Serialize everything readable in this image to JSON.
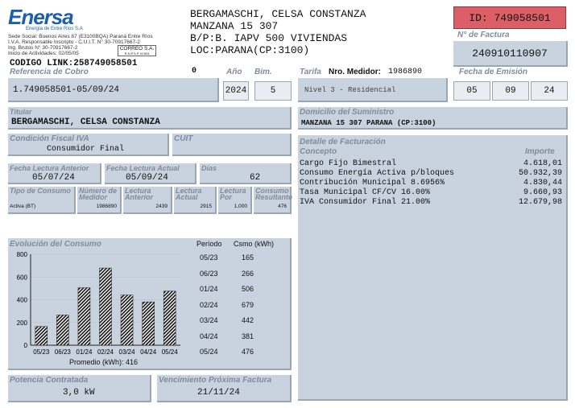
{
  "company": {
    "logo": "Enersa",
    "tagline": "Energía de Entre Ríos S.A",
    "info": [
      "Sede Social: Buenos Aires 87 (E3100BQA) Paraná Entre Ríos",
      "I.V.A. Responsable Inscripto - C.U.I.T. N° 30-70917667-2",
      "Ing. Brutos N° 30-70917667-2",
      "Inicio de Actividades: 02/05/05"
    ],
    "correo_stamp": "CORREO S.A.",
    "correo_sub": "R.N.P.S.P. N°824",
    "codigo_link": "CODIGO LINK:258749058501"
  },
  "customer": {
    "name": "BERGAMASCHI, CELSA CONSTANZA",
    "address": "MANZANA 15 307",
    "barrio": "B/P:B. IAPV 500 VIVIENDAS",
    "loc": "LOC:PARANA(CP:3100)"
  },
  "id_box": "ID: 749058501",
  "factura": {
    "label": "N° de Factura",
    "value": "240910110907"
  },
  "referencia": {
    "label": "Referencia de Cobro",
    "value": "1.749058501-05/09/24",
    "zero": "0"
  },
  "anio": {
    "label": "Año",
    "value": "2024"
  },
  "bim": {
    "label": "Bim.",
    "value": "5"
  },
  "tarifa": {
    "label": "Tarifa",
    "medidor_label": "Nro. Medidor:",
    "medidor": "1986890",
    "value": "Nivel 3 - Residencial"
  },
  "emision": {
    "label": "Fecha de Emisión",
    "d": "05",
    "m": "09",
    "y": "24"
  },
  "titular": {
    "label": "Titular",
    "value": "BERGAMASCHI, CELSA CONSTANZA"
  },
  "domicilio": {
    "label": "Domicilio del Suministro",
    "value": "MANZANA 15 307 PARANA (CP:3100)"
  },
  "iva": {
    "label": "Condición Fiscal IVA",
    "value": "Consumidor Final",
    "cuit_label": "CUIT"
  },
  "lecturas": {
    "ant_label": "Fecha Lectura Anterior",
    "ant": "05/07/24",
    "act_label": "Fecha Lectura Actual",
    "act": "05/09/24",
    "dias_label": "Días",
    "dias": "62"
  },
  "meter_table": {
    "headers": [
      "Tipo de Consumo",
      "Número de Medidor",
      "Lectura Anterior",
      "Lectura Actual",
      "Lectura Por",
      "Consumo Resultante"
    ],
    "row": [
      "Activa (BT)",
      "1986890",
      "2439",
      "2915",
      "1,000",
      "476"
    ]
  },
  "detalle": {
    "label": "Detalle de Facturación",
    "concepto_label": "Concepto",
    "importe_label": "Importe",
    "items": [
      {
        "c": "Cargo Fijo Bimestral",
        "i": "4.618,01"
      },
      {
        "c": "Consumo Energía Activa p/bloques",
        "i": "50.932,39"
      },
      {
        "c": "Contribución Municipal 8.6956%",
        "i": "4.830,44"
      },
      {
        "c": "Tasa Municipal CF/CV 16.00%",
        "i": "9.660,93"
      },
      {
        "c": "IVA Consumidor Final 21.00%",
        "i": "12.679,98"
      }
    ]
  },
  "evolucion": {
    "label": "Evolución del Consumo",
    "periodo_label": "Período",
    "csmo_label": "Csmo (kWh)",
    "promedio": "Promedio (kWh): 416",
    "rows": [
      {
        "p": "05/23",
        "c": "165"
      },
      {
        "p": "06/23",
        "c": "266"
      },
      {
        "p": "01/24",
        "c": "506"
      },
      {
        "p": "02/24",
        "c": "679"
      },
      {
        "p": "03/24",
        "c": "442"
      },
      {
        "p": "04/24",
        "c": "381"
      },
      {
        "p": "05/24",
        "c": "476"
      }
    ]
  },
  "chart_data": {
    "type": "bar",
    "categories": [
      "05/23",
      "06/23",
      "01/24",
      "02/24",
      "03/24",
      "04/24",
      "05/24"
    ],
    "values": [
      165,
      266,
      506,
      679,
      442,
      381,
      476
    ],
    "title": "Evolución del Consumo",
    "ylim": [
      0,
      800
    ],
    "yticks": [
      "0",
      "200",
      "400",
      "600",
      "800"
    ],
    "ytick_values": [
      0,
      200,
      400,
      600,
      800
    ]
  },
  "potencia": {
    "label": "Potencia Contratada",
    "value": "3,0 kW"
  },
  "vencimiento": {
    "label": "Vencimiento Próxima Factura",
    "value": "21/11/24"
  }
}
